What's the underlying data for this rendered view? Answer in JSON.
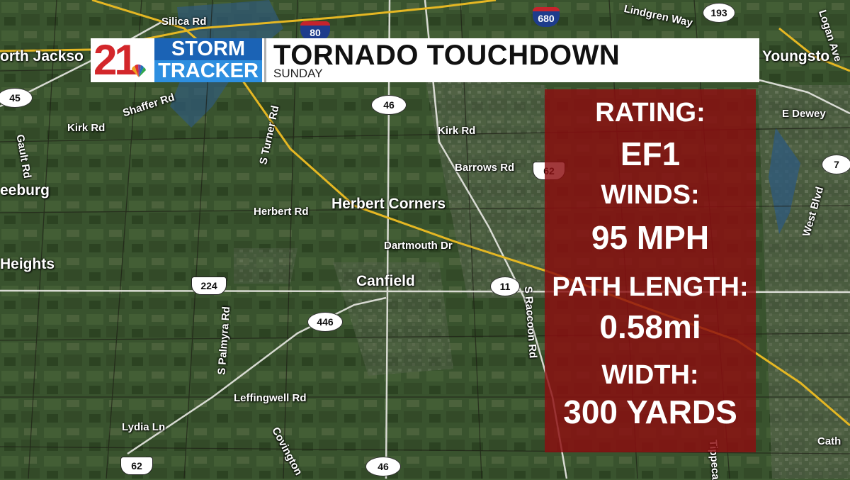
{
  "header": {
    "logo_number": "21",
    "logo_line1": "STORM",
    "logo_line2": "TRACKER",
    "title": "TORNADO TOUCHDOWN",
    "subtitle": "SUNDAY"
  },
  "stats": [
    {
      "label": "RATING:",
      "value": "EF1"
    },
    {
      "label": "WINDS:",
      "value": "95 MPH"
    },
    {
      "label": "PATH LENGTH:",
      "value": "0.58mi"
    },
    {
      "label": "WIDTH:",
      "value": "300 YARDS"
    }
  ],
  "map": {
    "places": {
      "north_jackson": "orth Jackso",
      "youngstown": "Youngsto",
      "herbert_corners": "Herbert Corners",
      "canfield": "Canfield",
      "heights": "Heights",
      "reeburg": "eeburg"
    },
    "roads": {
      "silica": "Silica Rd",
      "shaffer": "Shaffer Rd",
      "kirk_w": "Kirk Rd",
      "kirk_e": "Kirk Rd",
      "gault": "Gault Rd",
      "s_turner": "S Turner Rd",
      "barrows": "Barrows Rd",
      "herbert": "Herbert Rd",
      "dartmouth": "Dartmouth Dr",
      "s_palmyra": "S Palmyra Rd",
      "leffingwell": "Leffingwell Rd",
      "lydia": "Lydia Ln",
      "covington": "Covington",
      "s_raccoon": "S Raccoon Rd",
      "lindgren": "Lindgren Way",
      "logan": "Logan Ave",
      "e_dewey": "E Dewey",
      "west_blvd": "West Blvd",
      "tippecanoe": "Tippeca",
      "cath": "Cath"
    },
    "shields": {
      "i80": "80",
      "i680": "680",
      "us62_top": "62",
      "us62_bottom": "62",
      "us224": "224",
      "sr45": "45",
      "sr46_top": "46",
      "sr46_bottom": "46",
      "sr446": "446",
      "sr11": "11",
      "sr193": "193",
      "sr7": "7"
    }
  }
}
